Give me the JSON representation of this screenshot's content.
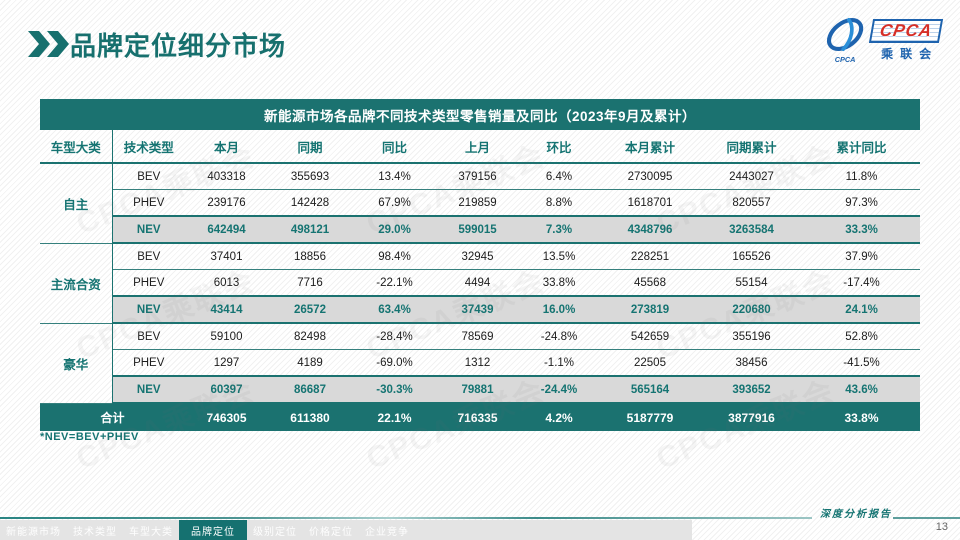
{
  "page": {
    "title": "品牌定位细分市场",
    "footnote": "*NEV=BEV+PHEV",
    "footer_report_label": "深度分析报告",
    "page_number": "13",
    "watermark_text": "CPCA乘联会"
  },
  "logo": {
    "acronym": "CPCA",
    "emblem_caption": "CPCA",
    "name_cn": "乘联会"
  },
  "colors": {
    "teal": "#1b7270",
    "teal_text": "#157472",
    "highlight_row_bg": "#d9d9d9",
    "logo_blue": "#1e63ae",
    "logo_red": "#d62f28"
  },
  "table": {
    "title": "新能源市场各品牌不同技术类型零售销量及同比（2023年9月及累计）",
    "columns": [
      "车型大类",
      "技术类型",
      "本月",
      "同期",
      "同比",
      "上月",
      "环比",
      "本月累计",
      "同期累计",
      "累计同比"
    ],
    "groups": [
      {
        "name": "自主",
        "rows": [
          {
            "type": "BEV",
            "highlight": false,
            "values": [
              "403318",
              "355693",
              "13.4%",
              "379156",
              "6.4%",
              "2730095",
              "2443027",
              "11.8%"
            ]
          },
          {
            "type": "PHEV",
            "highlight": false,
            "values": [
              "239176",
              "142428",
              "67.9%",
              "219859",
              "8.8%",
              "1618701",
              "820557",
              "97.3%"
            ]
          },
          {
            "type": "NEV",
            "highlight": true,
            "values": [
              "642494",
              "498121",
              "29.0%",
              "599015",
              "7.3%",
              "4348796",
              "3263584",
              "33.3%"
            ]
          }
        ]
      },
      {
        "name": "主流合资",
        "rows": [
          {
            "type": "BEV",
            "highlight": false,
            "values": [
              "37401",
              "18856",
              "98.4%",
              "32945",
              "13.5%",
              "228251",
              "165526",
              "37.9%"
            ]
          },
          {
            "type": "PHEV",
            "highlight": false,
            "values": [
              "6013",
              "7716",
              "-22.1%",
              "4494",
              "33.8%",
              "45568",
              "55154",
              "-17.4%"
            ]
          },
          {
            "type": "NEV",
            "highlight": true,
            "values": [
              "43414",
              "26572",
              "63.4%",
              "37439",
              "16.0%",
              "273819",
              "220680",
              "24.1%"
            ]
          }
        ]
      },
      {
        "name": "豪华",
        "rows": [
          {
            "type": "BEV",
            "highlight": false,
            "values": [
              "59100",
              "82498",
              "-28.4%",
              "78569",
              "-24.8%",
              "542659",
              "355196",
              "52.8%"
            ]
          },
          {
            "type": "PHEV",
            "highlight": false,
            "values": [
              "1297",
              "4189",
              "-69.0%",
              "1312",
              "-1.1%",
              "22505",
              "38456",
              "-41.5%"
            ]
          },
          {
            "type": "NEV",
            "highlight": true,
            "values": [
              "60397",
              "86687",
              "-30.3%",
              "79881",
              "-24.4%",
              "565164",
              "393652",
              "43.6%"
            ]
          }
        ]
      }
    ],
    "total": {
      "label": "合计",
      "values": [
        "746305",
        "611380",
        "22.1%",
        "716335",
        "4.2%",
        "5187779",
        "3877916",
        "33.8%"
      ]
    }
  },
  "nav": {
    "tabs": [
      {
        "label": "新能源市场",
        "slug": "new-energy-market",
        "active": false
      },
      {
        "label": "技术类型",
        "slug": "tech-type",
        "active": false
      },
      {
        "label": "车型大类",
        "slug": "model-category",
        "active": false
      },
      {
        "label": "品牌定位",
        "slug": "brand-positioning",
        "active": true
      },
      {
        "label": "级别定位",
        "slug": "segment-positioning",
        "active": false
      },
      {
        "label": "价格定位",
        "slug": "price-positioning",
        "active": false
      },
      {
        "label": "企业竞争",
        "slug": "enterprise-competition",
        "active": false
      }
    ]
  }
}
